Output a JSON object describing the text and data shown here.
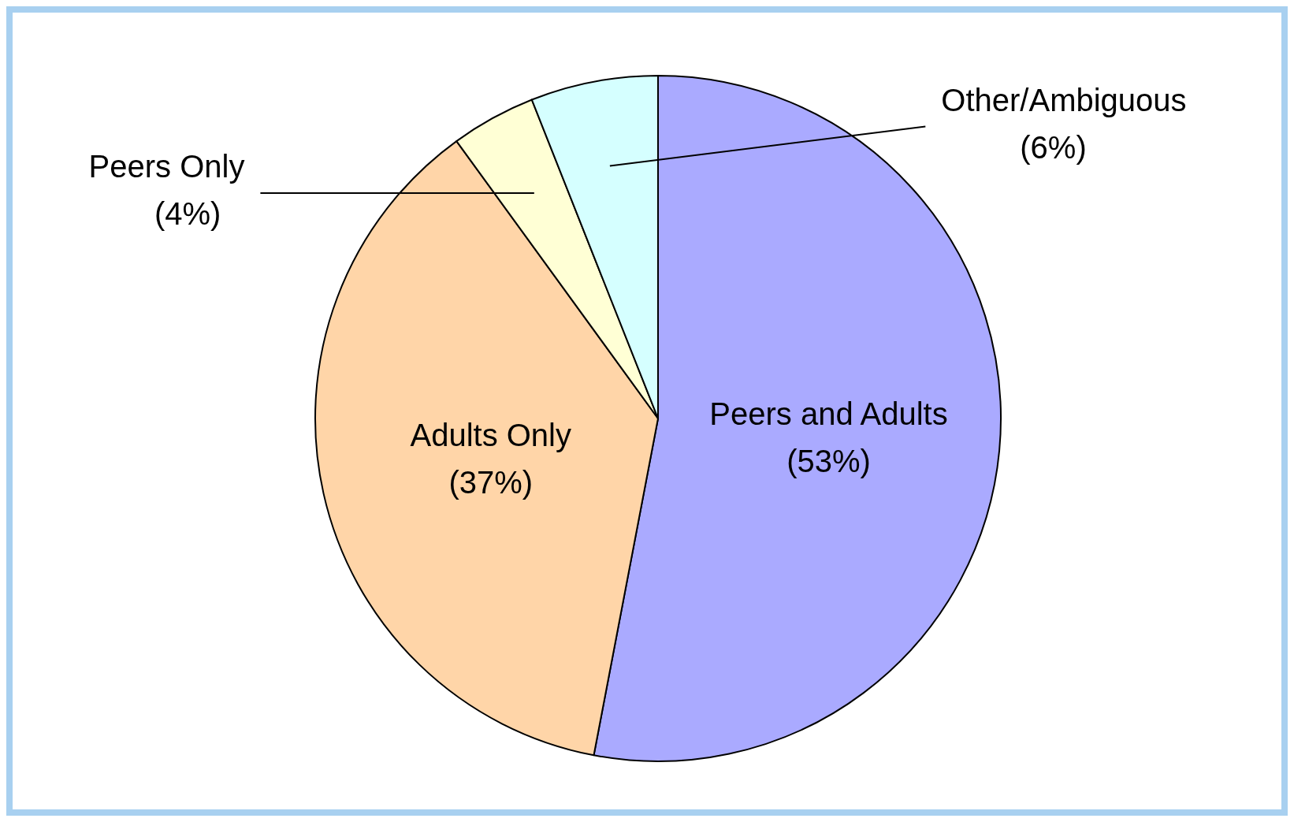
{
  "chart_data": {
    "type": "pie",
    "categories": [
      "Peers and Adults",
      "Adults Only",
      "Peers Only",
      "Other/Ambiguous"
    ],
    "values": [
      53,
      37,
      4,
      6
    ],
    "value_labels": [
      "(53%)",
      "(37%)",
      "(4%)",
      "(6%)"
    ],
    "colors": [
      "#aaaaff",
      "#ffd5a8",
      "#ffffd5",
      "#d5ffff"
    ]
  }
}
